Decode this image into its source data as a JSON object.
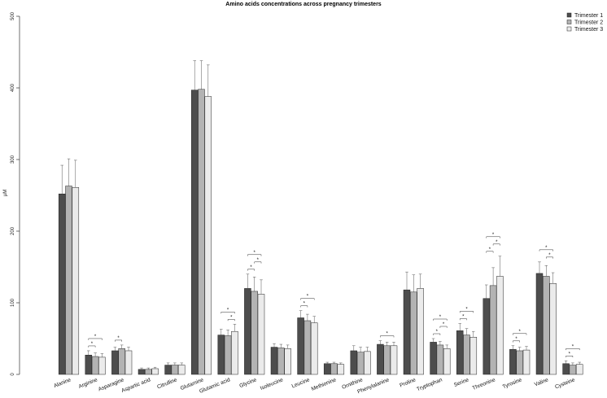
{
  "chart_data": {
    "type": "bar",
    "title": "Amino acids concentrations across pregnancy trimesters",
    "xlabel": "",
    "ylabel": "µM",
    "ylim": [
      0,
      500
    ],
    "yticks": [
      "0",
      "100",
      "200",
      "300",
      "400",
      "500"
    ],
    "legend_position": "top-right",
    "grid": false,
    "significance_marker": "*",
    "categories": [
      "Alanine",
      "Arginine",
      "Asparagine",
      "Aspartic acid",
      "Citrulline",
      "Glutamine",
      "Glutamic acid",
      "Glycine",
      "Isoleucine",
      "Leucine",
      "Methionine",
      "Ornithine",
      "Phenylalanine",
      "Proline",
      "Tryptophan",
      "Serine",
      "Threonine",
      "Tyrosine",
      "Valine",
      "Cysteine"
    ],
    "series": [
      {
        "name": "Trimester 1",
        "color": "#4d4d4d",
        "values": [
          252,
          27,
          33,
          7,
          13,
          397,
          55,
          120,
          38,
          79,
          15,
          33,
          42,
          118,
          45,
          61,
          106,
          35,
          141,
          15
        ],
        "errors": [
          40,
          6,
          5,
          2,
          3,
          41,
          8,
          20,
          5,
          10,
          2,
          7,
          5,
          25,
          5,
          10,
          19,
          5,
          16,
          4
        ]
      },
      {
        "name": "Trimester 2",
        "color": "#b3b3b3",
        "values": [
          263,
          25,
          36,
          7,
          13,
          398,
          54,
          116,
          37,
          75,
          15,
          31,
          40,
          115,
          41,
          55,
          124,
          33,
          137,
          13
        ],
        "errors": [
          38,
          5,
          5,
          2,
          3,
          40,
          8,
          20,
          5,
          9,
          2,
          7,
          5,
          24,
          5,
          9,
          25,
          5,
          15,
          3
        ]
      },
      {
        "name": "Trimester 3",
        "color": "#ebebeb",
        "values": [
          261,
          24,
          33,
          8,
          13,
          388,
          60,
          112,
          36,
          72,
          14,
          32,
          40,
          120,
          36,
          52,
          137,
          34,
          127,
          14
        ],
        "errors": [
          38,
          5,
          5,
          2,
          3,
          44,
          10,
          20,
          5,
          9,
          2,
          6,
          5,
          20,
          5,
          8,
          28,
          5,
          15,
          3
        ]
      }
    ],
    "significance": [
      {
        "category": "Arginine",
        "pairs": [
          [
            0,
            1
          ],
          [
            0,
            2
          ]
        ]
      },
      {
        "category": "Asparagine",
        "pairs": [
          [
            0,
            1
          ]
        ]
      },
      {
        "category": "Glutamic acid",
        "pairs": [
          [
            1,
            2
          ],
          [
            0,
            2
          ]
        ]
      },
      {
        "category": "Glycine",
        "pairs": [
          [
            0,
            1
          ],
          [
            1,
            2
          ],
          [
            0,
            2
          ]
        ]
      },
      {
        "category": "Leucine",
        "pairs": [
          [
            0,
            1
          ],
          [
            0,
            2
          ]
        ]
      },
      {
        "category": "Phenylalanine",
        "pairs": [
          [
            0,
            2
          ]
        ]
      },
      {
        "category": "Tryptophan",
        "pairs": [
          [
            0,
            1
          ],
          [
            1,
            2
          ],
          [
            0,
            2
          ]
        ]
      },
      {
        "category": "Serine",
        "pairs": [
          [
            0,
            1
          ],
          [
            0,
            2
          ]
        ]
      },
      {
        "category": "Threonine",
        "pairs": [
          [
            0,
            1
          ],
          [
            1,
            2
          ],
          [
            0,
            2
          ]
        ]
      },
      {
        "category": "Tyrosine",
        "pairs": [
          [
            0,
            1
          ],
          [
            0,
            2
          ]
        ]
      },
      {
        "category": "Valine",
        "pairs": [
          [
            1,
            2
          ],
          [
            0,
            2
          ]
        ]
      },
      {
        "category": "Cysteine",
        "pairs": [
          [
            0,
            1
          ],
          [
            0,
            2
          ]
        ]
      }
    ]
  }
}
